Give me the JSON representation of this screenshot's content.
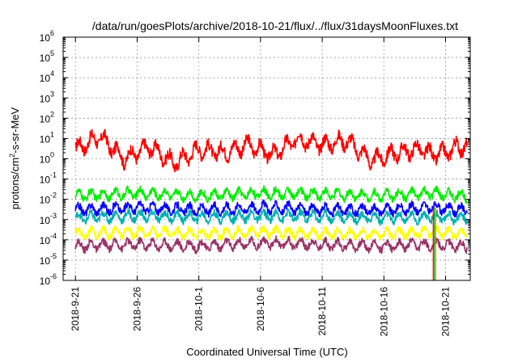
{
  "chart_data": {
    "type": "line",
    "title": "/data/run/goesPlots/archive/2018-10-21/flux/../flux/31daysMoonFluxes.txt",
    "xlabel": "Coordinated Universal Time (UTC)",
    "ylabel": {
      "prefix": "protons/cm",
      "sup": "2",
      "suffix": "-s-sr-MeV"
    },
    "yscale": "log",
    "ylim": [
      1e-06,
      1000000.0
    ],
    "xlim": [
      "2018-09-20T00:00",
      "2018-10-23T00:00"
    ],
    "grid": true,
    "y_ticks": [
      {
        "base": "10",
        "exp": "-6"
      },
      {
        "base": "10",
        "exp": "-5"
      },
      {
        "base": "10",
        "exp": "-4"
      },
      {
        "base": "10",
        "exp": "-3"
      },
      {
        "base": "10",
        "exp": "-2"
      },
      {
        "base": "10",
        "exp": "-1"
      },
      {
        "base": "10",
        "exp": "0"
      },
      {
        "base": "10",
        "exp": "1"
      },
      {
        "base": "10",
        "exp": "2"
      },
      {
        "base": "10",
        "exp": "3"
      },
      {
        "base": "10",
        "exp": "4"
      },
      {
        "base": "10",
        "exp": "5"
      },
      {
        "base": "10",
        "exp": "6"
      }
    ],
    "x_ticks": [
      "2018-9-21",
      "2018-9-26",
      "2018-10-1",
      "2018-10-6",
      "2018-10-11",
      "2018-10-16",
      "2018-10-21"
    ],
    "series": [
      {
        "color": "#ff0000",
        "x": [
          "2018-09-21",
          "2018-09-23",
          "2018-09-25",
          "2018-09-27",
          "2018-09-29",
          "2018-10-01",
          "2018-10-03",
          "2018-10-05",
          "2018-10-07",
          "2018-10-09",
          "2018-10-11",
          "2018-10-13",
          "2018-10-15",
          "2018-10-17",
          "2018-10-19",
          "2018-10-20",
          "2018-10-21",
          "2018-10-22"
        ],
        "values": [
          3,
          12,
          1,
          4,
          0.6,
          3,
          2,
          5,
          1.5,
          10,
          5,
          8,
          0.8,
          2,
          3,
          1.5,
          2,
          4
        ]
      },
      {
        "color": "#00ee00",
        "x": [
          "2018-09-21",
          "2018-09-26",
          "2018-10-01",
          "2018-10-06",
          "2018-10-11",
          "2018-10-16",
          "2018-10-20",
          "2018-10-22"
        ],
        "values": [
          0.015,
          0.02,
          0.015,
          0.02,
          0.018,
          0.015,
          0.02,
          0.015
        ]
      },
      {
        "color": "#0000ff",
        "x": [
          "2018-09-21",
          "2018-09-26",
          "2018-10-01",
          "2018-10-06",
          "2018-10-11",
          "2018-10-16",
          "2018-10-20",
          "2018-10-22"
        ],
        "values": [
          0.003,
          0.004,
          0.003,
          0.004,
          0.003,
          0.003,
          0.004,
          0.003
        ]
      },
      {
        "color": "#00b0b0",
        "x": [
          "2018-09-21",
          "2018-09-26",
          "2018-10-01",
          "2018-10-06",
          "2018-10-11",
          "2018-10-16",
          "2018-10-20",
          "2018-10-22"
        ],
        "values": [
          0.0012,
          0.0015,
          0.0013,
          0.0015,
          0.0014,
          0.0012,
          0.0013,
          0.0012
        ]
      },
      {
        "color": "#ffff00",
        "x": [
          "2018-09-21",
          "2018-09-26",
          "2018-10-01",
          "2018-10-06",
          "2018-10-11",
          "2018-10-16",
          "2018-10-20",
          "2018-10-22"
        ],
        "values": [
          0.0002,
          0.00025,
          0.0002,
          0.00025,
          0.0002,
          0.0002,
          0.00025,
          0.0002
        ]
      },
      {
        "color": "#993366",
        "x": [
          "2018-09-21",
          "2018-09-26",
          "2018-10-01",
          "2018-10-06",
          "2018-10-11",
          "2018-10-16",
          "2018-10-20",
          "2018-10-22"
        ],
        "values": [
          5e-05,
          6e-05,
          5e-05,
          7e-05,
          6e-05,
          5e-05,
          6e-05,
          5e-05
        ]
      }
    ],
    "dropout": {
      "x": "2018-10-20",
      "colors": [
        "#ff0000",
        "#00aa00",
        "#ff8800"
      ]
    }
  }
}
